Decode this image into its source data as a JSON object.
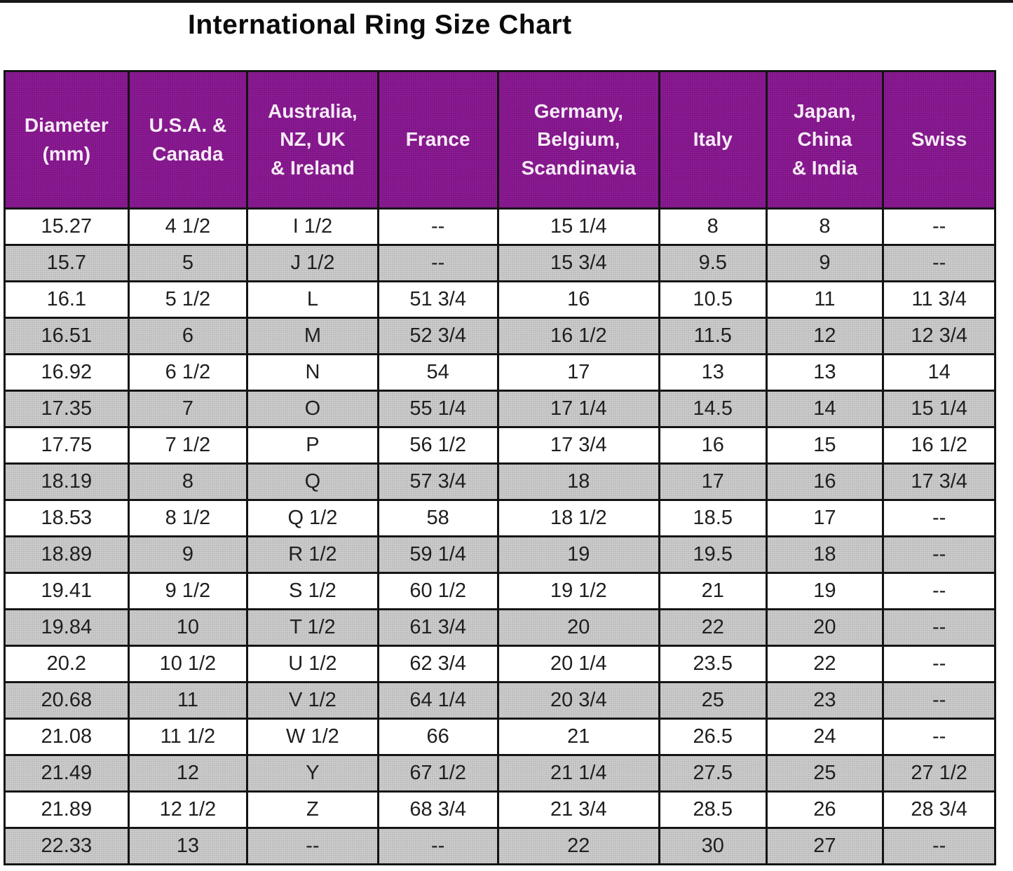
{
  "title": "International Ring Size Chart",
  "colors": {
    "header_bg": "#8E1B95",
    "header_text": "#F6ECF6",
    "row_alt_bg": "#CDCDCD",
    "row_bg": "#FFFFFF",
    "border": "#141414",
    "title_text": "#0B0B0B"
  },
  "chart_data": {
    "type": "table",
    "title": "International Ring Size Chart",
    "legend_position": "none",
    "grid": "all-borders",
    "columns": [
      {
        "id": "diameter-mm",
        "label": "Diameter (mm)",
        "label_lines": [
          "Diameter",
          "(mm)"
        ],
        "width": "12.5%"
      },
      {
        "id": "usa-canada",
        "label": "U.S.A. & Canada",
        "label_lines": [
          "U.S.A. &",
          "Canada"
        ],
        "width": "12.0%"
      },
      {
        "id": "australia-nz-uk-ireland",
        "label": "Australia, NZ, UK & Ireland",
        "label_lines": [
          "Australia,",
          "NZ, UK",
          "& Ireland"
        ],
        "width": "13.2%"
      },
      {
        "id": "france",
        "label": "France",
        "label_lines": [
          "France"
        ],
        "width": "12.1%"
      },
      {
        "id": "germany-belgium-scandinavia",
        "label": "Germany, Belgium, Scandinavia",
        "label_lines": [
          "Germany,",
          "Belgium,",
          "Scandinavia"
        ],
        "width": "16.3%"
      },
      {
        "id": "italy",
        "label": "Italy",
        "label_lines": [
          "Italy"
        ],
        "width": "10.8%"
      },
      {
        "id": "japan-china-india",
        "label": "Japan, China & India",
        "label_lines": [
          "Japan,",
          "China",
          "& India"
        ],
        "width": "11.8%"
      },
      {
        "id": "swiss",
        "label": "Swiss",
        "label_lines": [
          "Swiss"
        ],
        "width": "11.3%"
      }
    ],
    "rows": [
      [
        "15.27",
        "4 1/2",
        "I 1/2",
        "--",
        "15 1/4",
        "8",
        "8",
        "--"
      ],
      [
        "15.7",
        "5",
        "J 1/2",
        "--",
        "15 3/4",
        "9.5",
        "9",
        "--"
      ],
      [
        "16.1",
        "5 1/2",
        "L",
        "51 3/4",
        "16",
        "10.5",
        "11",
        "11 3/4"
      ],
      [
        "16.51",
        "6",
        "M",
        "52 3/4",
        "16 1/2",
        "11.5",
        "12",
        "12 3/4"
      ],
      [
        "16.92",
        "6 1/2",
        "N",
        "54",
        "17",
        "13",
        "13",
        "14"
      ],
      [
        "17.35",
        "7",
        "O",
        "55 1/4",
        "17 1/4",
        "14.5",
        "14",
        "15 1/4"
      ],
      [
        "17.75",
        "7 1/2",
        "P",
        "56 1/2",
        "17 3/4",
        "16",
        "15",
        "16 1/2"
      ],
      [
        "18.19",
        "8",
        "Q",
        "57 3/4",
        "18",
        "17",
        "16",
        "17 3/4"
      ],
      [
        "18.53",
        "8 1/2",
        "Q 1/2",
        "58",
        "18 1/2",
        "18.5",
        "17",
        "--"
      ],
      [
        "18.89",
        "9",
        "R 1/2",
        "59 1/4",
        "19",
        "19.5",
        "18",
        "--"
      ],
      [
        "19.41",
        "9 1/2",
        "S 1/2",
        "60 1/2",
        "19 1/2",
        "21",
        "19",
        "--"
      ],
      [
        "19.84",
        "10",
        "T 1/2",
        "61 3/4",
        "20",
        "22",
        "20",
        "--"
      ],
      [
        "20.2",
        "10 1/2",
        "U 1/2",
        "62 3/4",
        "20 1/4",
        "23.5",
        "22",
        "--"
      ],
      [
        "20.68",
        "11",
        "V 1/2",
        "64 1/4",
        "20 3/4",
        "25",
        "23",
        "--"
      ],
      [
        "21.08",
        "11 1/2",
        "W 1/2",
        "66",
        "21",
        "26.5",
        "24",
        "--"
      ],
      [
        "21.49",
        "12",
        "Y",
        "67 1/2",
        "21 1/4",
        "27.5",
        "25",
        "27 1/2"
      ],
      [
        "21.89",
        "12 1/2",
        "Z",
        "68 3/4",
        "21 3/4",
        "28.5",
        "26",
        "28 3/4"
      ],
      [
        "22.33",
        "13",
        "--",
        "--",
        "22",
        "30",
        "27",
        "--"
      ]
    ]
  }
}
